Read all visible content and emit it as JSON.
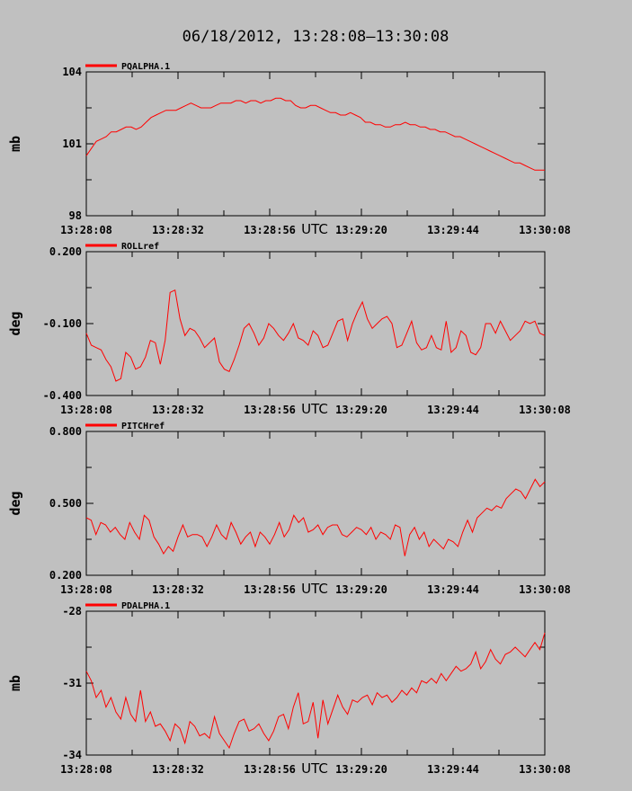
{
  "title": "06/18/2012, 13:28:08–13:30:08",
  "chart_data": [
    {
      "type": "line",
      "legend": "PQALPHA.1",
      "ylabel": "mb",
      "xlabel": "UTC",
      "ylim": [
        98,
        104
      ],
      "yticks": [
        "98",
        "101",
        "104"
      ],
      "xticks": [
        "13:28:08",
        "13:28:32",
        "13:28:56",
        "13:29:20",
        "13:29:44",
        "13:30:08"
      ],
      "xlim_seconds": [
        0,
        120
      ],
      "x_step_seconds": 1,
      "series": [
        {
          "color": "#ff0000",
          "values": [
            100.5,
            100.8,
            101.1,
            101.2,
            101.3,
            101.5,
            101.5,
            101.6,
            101.7,
            101.7,
            101.6,
            101.7,
            101.9,
            102.1,
            102.2,
            102.3,
            102.4,
            102.4,
            102.4,
            102.5,
            102.6,
            102.7,
            102.6,
            102.5,
            102.5,
            102.5,
            102.6,
            102.7,
            102.7,
            102.7,
            102.8,
            102.8,
            102.7,
            102.8,
            102.8,
            102.7,
            102.8,
            102.8,
            102.9,
            102.9,
            102.8,
            102.8,
            102.6,
            102.5,
            102.5,
            102.6,
            102.6,
            102.5,
            102.4,
            102.3,
            102.3,
            102.2,
            102.2,
            102.3,
            102.2,
            102.1,
            101.9,
            101.9,
            101.8,
            101.8,
            101.7,
            101.7,
            101.8,
            101.8,
            101.9,
            101.8,
            101.8,
            101.7,
            101.7,
            101.6,
            101.6,
            101.5,
            101.5,
            101.4,
            101.3,
            101.3,
            101.2,
            101.1,
            101.0,
            100.9,
            100.8,
            100.7,
            100.6,
            100.5,
            100.4,
            100.3,
            100.2,
            100.2,
            100.1,
            100.0,
            99.9,
            99.9,
            99.9
          ]
        }
      ]
    },
    {
      "type": "line",
      "legend": "ROLLref",
      "ylabel": "deg",
      "xlabel": "UTC",
      "ylim": [
        -0.4,
        0.2
      ],
      "yticks": [
        "-0.400",
        "-0.100",
        "0.200"
      ],
      "xticks": [
        "13:28:08",
        "13:28:32",
        "13:28:56",
        "13:29:20",
        "13:29:44",
        "13:30:08"
      ],
      "xlim_seconds": [
        0,
        120
      ],
      "x_step_seconds": 1,
      "series": [
        {
          "color": "#ff0000",
          "values": [
            -0.14,
            -0.19,
            -0.2,
            -0.21,
            -0.25,
            -0.28,
            -0.34,
            -0.33,
            -0.22,
            -0.24,
            -0.29,
            -0.28,
            -0.24,
            -0.17,
            -0.18,
            -0.27,
            -0.17,
            0.03,
            0.04,
            -0.08,
            -0.15,
            -0.12,
            -0.13,
            -0.16,
            -0.2,
            -0.18,
            -0.16,
            -0.26,
            -0.29,
            -0.3,
            -0.25,
            -0.19,
            -0.12,
            -0.1,
            -0.14,
            -0.19,
            -0.16,
            -0.1,
            -0.12,
            -0.15,
            -0.17,
            -0.14,
            -0.1,
            -0.16,
            -0.17,
            -0.19,
            -0.13,
            -0.15,
            -0.2,
            -0.19,
            -0.14,
            -0.09,
            -0.08,
            -0.17,
            -0.1,
            -0.05,
            -0.01,
            -0.08,
            -0.12,
            -0.1,
            -0.08,
            -0.07,
            -0.1,
            -0.2,
            -0.19,
            -0.14,
            -0.09,
            -0.18,
            -0.21,
            -0.2,
            -0.15,
            -0.2,
            -0.21,
            -0.09,
            -0.22,
            -0.2,
            -0.13,
            -0.15,
            -0.22,
            -0.23,
            -0.2,
            -0.1,
            -0.1,
            -0.14,
            -0.09,
            -0.13,
            -0.17,
            -0.15,
            -0.13,
            -0.09,
            -0.1,
            -0.09,
            -0.14,
            -0.15
          ]
        }
      ]
    },
    {
      "type": "line",
      "legend": "PITCHref",
      "ylabel": "deg",
      "xlabel": "UTC",
      "ylim": [
        0.2,
        0.8
      ],
      "yticks": [
        "0.200",
        "0.500",
        "0.800"
      ],
      "xticks": [
        "13:28:08",
        "13:28:32",
        "13:28:56",
        "13:29:20",
        "13:29:44",
        "13:30:08"
      ],
      "xlim_seconds": [
        0,
        120
      ],
      "x_step_seconds": 1,
      "series": [
        {
          "color": "#ff0000",
          "values": [
            0.44,
            0.43,
            0.37,
            0.42,
            0.41,
            0.38,
            0.4,
            0.37,
            0.35,
            0.42,
            0.38,
            0.35,
            0.45,
            0.43,
            0.36,
            0.33,
            0.29,
            0.32,
            0.3,
            0.36,
            0.41,
            0.36,
            0.37,
            0.37,
            0.36,
            0.32,
            0.36,
            0.41,
            0.37,
            0.35,
            0.42,
            0.38,
            0.33,
            0.36,
            0.38,
            0.32,
            0.38,
            0.36,
            0.33,
            0.37,
            0.42,
            0.36,
            0.39,
            0.45,
            0.42,
            0.44,
            0.38,
            0.39,
            0.41,
            0.37,
            0.4,
            0.41,
            0.41,
            0.37,
            0.36,
            0.38,
            0.4,
            0.39,
            0.37,
            0.4,
            0.35,
            0.38,
            0.37,
            0.35,
            0.41,
            0.4,
            0.28,
            0.37,
            0.4,
            0.35,
            0.38,
            0.32,
            0.35,
            0.33,
            0.31,
            0.35,
            0.34,
            0.32,
            0.38,
            0.43,
            0.38,
            0.44,
            0.46,
            0.48,
            0.47,
            0.49,
            0.48,
            0.52,
            0.54,
            0.56,
            0.55,
            0.52,
            0.56,
            0.6,
            0.57,
            0.59
          ]
        }
      ]
    },
    {
      "type": "line",
      "legend": "PDALPHA.1",
      "ylabel": "mb",
      "xlabel": "UTC",
      "ylim": [
        -34,
        -28
      ],
      "yticks": [
        "-34",
        "-31",
        "-28"
      ],
      "xticks": [
        "13:28:08",
        "13:28:32",
        "13:28:56",
        "13:29:20",
        "13:29:44",
        "13:30:08"
      ],
      "xlim_seconds": [
        0,
        120
      ],
      "x_step_seconds": 1,
      "series": [
        {
          "color": "#ff0000",
          "values": [
            -30.5,
            -30.9,
            -31.6,
            -31.3,
            -32.0,
            -31.6,
            -32.2,
            -32.5,
            -31.6,
            -32.3,
            -32.6,
            -31.3,
            -32.6,
            -32.2,
            -32.8,
            -32.7,
            -33.0,
            -33.4,
            -32.7,
            -32.9,
            -33.5,
            -32.6,
            -32.8,
            -33.2,
            -33.1,
            -33.3,
            -32.4,
            -33.1,
            -33.4,
            -33.7,
            -33.1,
            -32.6,
            -32.5,
            -33.0,
            -32.9,
            -32.7,
            -33.1,
            -33.4,
            -33.0,
            -32.4,
            -32.3,
            -32.9,
            -32.0,
            -31.4,
            -32.7,
            -32.6,
            -31.8,
            -33.3,
            -31.7,
            -32.7,
            -32.1,
            -31.5,
            -32.0,
            -32.3,
            -31.7,
            -31.8,
            -31.6,
            -31.5,
            -31.9,
            -31.4,
            -31.6,
            -31.5,
            -31.8,
            -31.6,
            -31.3,
            -31.5,
            -31.2,
            -31.4,
            -30.9,
            -31.0,
            -30.8,
            -31.0,
            -30.6,
            -30.9,
            -30.6,
            -30.3,
            -30.5,
            -30.4,
            -30.2,
            -29.7,
            -30.4,
            -30.1,
            -29.6,
            -30.0,
            -30.2,
            -29.8,
            -29.7,
            -29.5,
            -29.7,
            -29.9,
            -29.6,
            -29.3,
            -29.6,
            -28.9
          ]
        }
      ]
    }
  ]
}
